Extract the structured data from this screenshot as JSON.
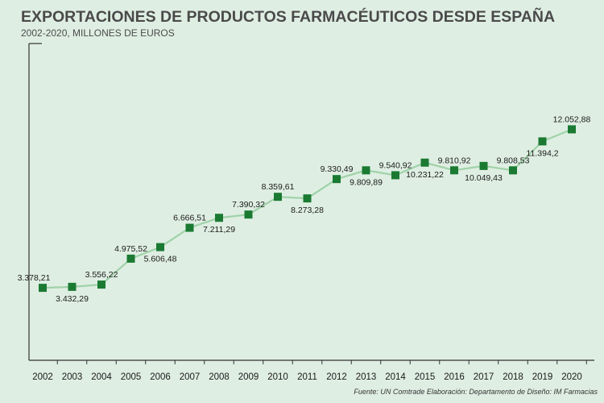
{
  "title": "EXPORTACIONES DE PRODUCTOS FARMACÉUTICOS DESDE ESPAÑA",
  "subtitle": "2002-2020, MILLONES DE EUROS",
  "source": "Fuente: UN Comtrade  Elaboración: Departamento de Diseño: IM Farmacias",
  "colors": {
    "background": "#dfeee3",
    "line": "#9fd2a8",
    "marker": "#1a7a32",
    "axis": "#333333"
  },
  "chart_data": {
    "type": "line",
    "title": "EXPORTACIONES DE PRODUCTOS FARMACÉUTICOS DESDE ESPAÑA",
    "subtitle": "2002-2020, MILLONES DE EUROS",
    "xlabel": "",
    "ylabel": "",
    "grid": false,
    "legend": "none",
    "ylim": [
      0,
      13000
    ],
    "categories": [
      "2002",
      "2003",
      "2004",
      "2005",
      "2006",
      "2007",
      "2008",
      "2009",
      "2010",
      "2011",
      "2012",
      "2013",
      "2014",
      "2015",
      "2016",
      "2017",
      "2018",
      "2019",
      "2020"
    ],
    "values": [
      3378.21,
      3432.29,
      3556.22,
      4975.52,
      5606.48,
      6666.51,
      7211.29,
      7390.32,
      8359.61,
      8273.28,
      9330.49,
      9809.89,
      9540.92,
      10231.22,
      9810.92,
      10049.43,
      9808.53,
      11394.2,
      12052.88
    ],
    "value_labels": [
      "3.378,21",
      "3.432,29",
      "3.556,22",
      "4.975,52",
      "5.606,48",
      "6.666,51",
      "7.211,29",
      "7.390,32",
      "8.359,61",
      "8.273,28",
      "9.330,49",
      "9.809,89",
      "9.540,92",
      "10.231,22",
      "9.810,92",
      "10.049,43",
      "9.808,53",
      "11.394,2",
      "12.052,88"
    ],
    "label_position": [
      "above",
      "below",
      "above",
      "above",
      "below",
      "above",
      "below",
      "above",
      "above",
      "below",
      "above",
      "below",
      "above",
      "below",
      "above",
      "below",
      "above",
      "below",
      "above"
    ]
  }
}
